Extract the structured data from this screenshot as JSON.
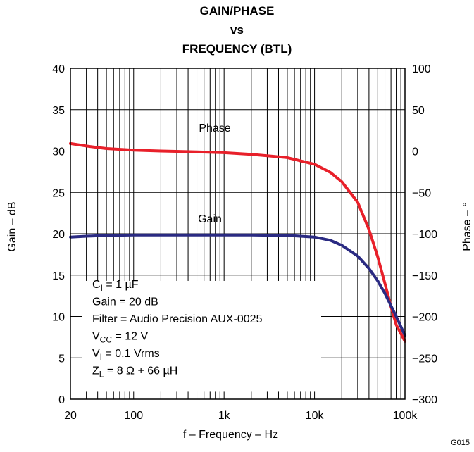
{
  "figure_id": "G015",
  "chart_data": {
    "type": "line",
    "title": [
      "GAIN/PHASE",
      "vs",
      "FREQUENCY (BTL)"
    ],
    "xlabel": "f – Frequency – Hz",
    "ylabel_left": "Gain – dB",
    "ylabel_right": "Phase – °",
    "x_scale": "log",
    "xlim": [
      20,
      100000
    ],
    "ylim_left": [
      0,
      40
    ],
    "ylim_right": [
      -300,
      100
    ],
    "x_ticks": [
      {
        "value": 20,
        "label": "20"
      },
      {
        "value": 100,
        "label": "100"
      },
      {
        "value": 1000,
        "label": "1k"
      },
      {
        "value": 10000,
        "label": "10k"
      },
      {
        "value": 100000,
        "label": "100k"
      }
    ],
    "y_ticks_left": [
      {
        "value": 0,
        "label": "0"
      },
      {
        "value": 5,
        "label": "5"
      },
      {
        "value": 10,
        "label": "10"
      },
      {
        "value": 15,
        "label": "15"
      },
      {
        "value": 20,
        "label": "20"
      },
      {
        "value": 25,
        "label": "25"
      },
      {
        "value": 30,
        "label": "30"
      },
      {
        "value": 35,
        "label": "35"
      },
      {
        "value": 40,
        "label": "40"
      }
    ],
    "y_ticks_right": [
      {
        "value": -300,
        "label": "−300"
      },
      {
        "value": -250,
        "label": "−250"
      },
      {
        "value": -200,
        "label": "−200"
      },
      {
        "value": -150,
        "label": "−150"
      },
      {
        "value": -100,
        "label": "−100"
      },
      {
        "value": -50,
        "label": "−50"
      },
      {
        "value": 0,
        "label": "0"
      },
      {
        "value": 50,
        "label": "50"
      },
      {
        "value": 100,
        "label": "100"
      }
    ],
    "grid": true,
    "series": [
      {
        "name": "Phase",
        "axis": "right",
        "color": "#e8202a",
        "x": [
          20,
          30,
          50,
          100,
          200,
          500,
          1000,
          2000,
          5000,
          10000,
          15000,
          20000,
          30000,
          40000,
          50000,
          60000,
          70000,
          80000,
          100000
        ],
        "y": [
          9,
          6,
          3,
          1,
          0,
          -1,
          -2,
          -4,
          -8,
          -16,
          -26,
          -37,
          -62,
          -95,
          -128,
          -160,
          -188,
          -210,
          -230
        ]
      },
      {
        "name": "Gain",
        "axis": "left",
        "color": "#2a2a82",
        "x": [
          20,
          30,
          50,
          100,
          200,
          500,
          1000,
          2000,
          5000,
          10000,
          15000,
          20000,
          30000,
          40000,
          50000,
          60000,
          70000,
          80000,
          100000
        ],
        "y": [
          19.6,
          19.7,
          19.8,
          19.85,
          19.85,
          19.85,
          19.85,
          19.85,
          19.8,
          19.6,
          19.2,
          18.6,
          17.3,
          15.8,
          14.3,
          12.8,
          11.3,
          10.0,
          7.7
        ]
      }
    ],
    "curve_labels": [
      {
        "text": "Phase",
        "series": "Phase"
      },
      {
        "text": "Gain",
        "series": "Gain"
      }
    ],
    "annotation_lines": [
      {
        "main": "C",
        "sub": "I",
        "rest": " = 1 µF"
      },
      {
        "main": "Gain = 20 dB",
        "sub": "",
        "rest": ""
      },
      {
        "main": "Filter = Audio Precision AUX-0025",
        "sub": "",
        "rest": ""
      },
      {
        "main": "V",
        "sub": "CC",
        "rest": " = 12 V"
      },
      {
        "main": "V",
        "sub": "I",
        "rest": " = 0.1 Vrms"
      },
      {
        "main": "Z",
        "sub": "L",
        "rest": " = 8 Ω + 66 µH"
      }
    ]
  }
}
